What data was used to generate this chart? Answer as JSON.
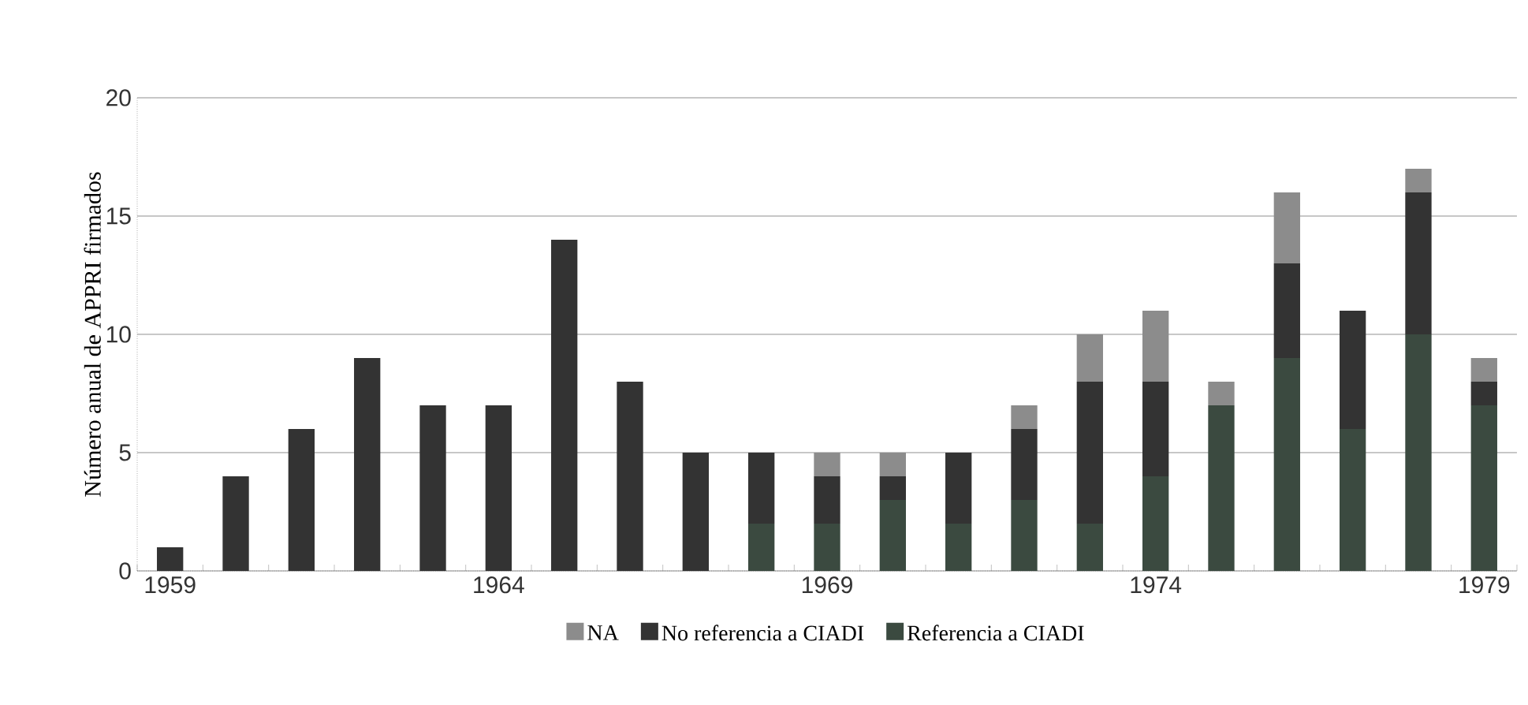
{
  "chart_data": {
    "type": "bar",
    "stacked": true,
    "ylabel": "Número anual de APPRI firmados",
    "categories": [
      "1959",
      null,
      null,
      null,
      null,
      "1964",
      null,
      null,
      null,
      null,
      "1969",
      null,
      null,
      null,
      null,
      "1974",
      null,
      null,
      null,
      null,
      "1979"
    ],
    "series": [
      {
        "name": "Referencia a CIADI",
        "color": "#3b4a40",
        "values": [
          0,
          0,
          0,
          0,
          0,
          0,
          0,
          0,
          0,
          2,
          2,
          3,
          2,
          3,
          2,
          4,
          7,
          9,
          6,
          10,
          7
        ]
      },
      {
        "name": "No referencia a CIADI",
        "color": "#333333",
        "values": [
          1,
          4,
          6,
          9,
          7,
          7,
          14,
          8,
          5,
          3,
          2,
          1,
          3,
          3,
          6,
          4,
          0,
          4,
          5,
          6,
          1
        ]
      },
      {
        "name": "NA",
        "color": "#8c8c8c",
        "values": [
          0,
          0,
          0,
          0,
          0,
          0,
          0,
          0,
          0,
          0,
          1,
          1,
          0,
          1,
          2,
          3,
          1,
          3,
          0,
          1,
          1
        ]
      }
    ],
    "ylim": [
      0,
      20
    ],
    "yticks": [
      0,
      5,
      10,
      15,
      20
    ],
    "grid": "y",
    "legend": "bottom"
  }
}
